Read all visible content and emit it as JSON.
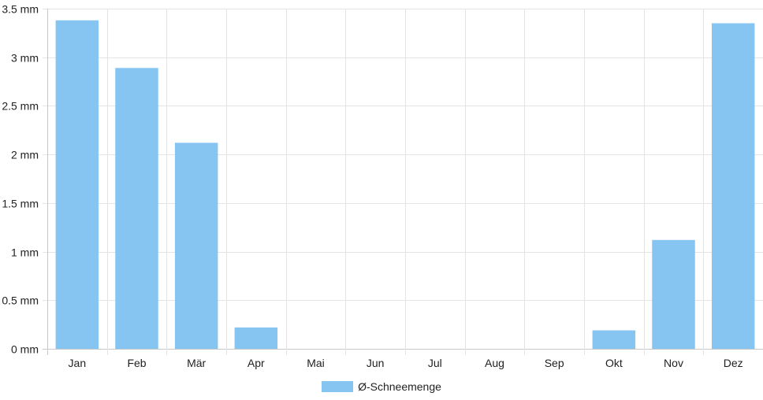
{
  "chart_data": {
    "type": "bar",
    "categories": [
      "Jan",
      "Feb",
      "Mär",
      "Apr",
      "Mai",
      "Jun",
      "Jul",
      "Aug",
      "Sep",
      "Okt",
      "Nov",
      "Dez"
    ],
    "series": [
      {
        "name": "Ø-Schneemenge",
        "values": [
          3.38,
          2.89,
          2.12,
          0.22,
          0,
          0,
          0,
          0,
          0,
          0.19,
          1.12,
          3.35
        ]
      }
    ],
    "y_unit": "mm",
    "ylim": [
      0,
      3.5
    ],
    "y_ticks": [
      "0 mm",
      "0.5 mm",
      "1 mm",
      "1.5 mm",
      "2 mm",
      "2.5 mm",
      "3 mm",
      "3.5 mm"
    ],
    "y_tick_values": [
      0,
      0.5,
      1,
      1.5,
      2,
      2.5,
      3,
      3.5
    ],
    "grid": true,
    "legend_position": "bottom",
    "bar_color": "#86c5f2"
  },
  "legend": {
    "label": "Ø-Schneemenge"
  }
}
